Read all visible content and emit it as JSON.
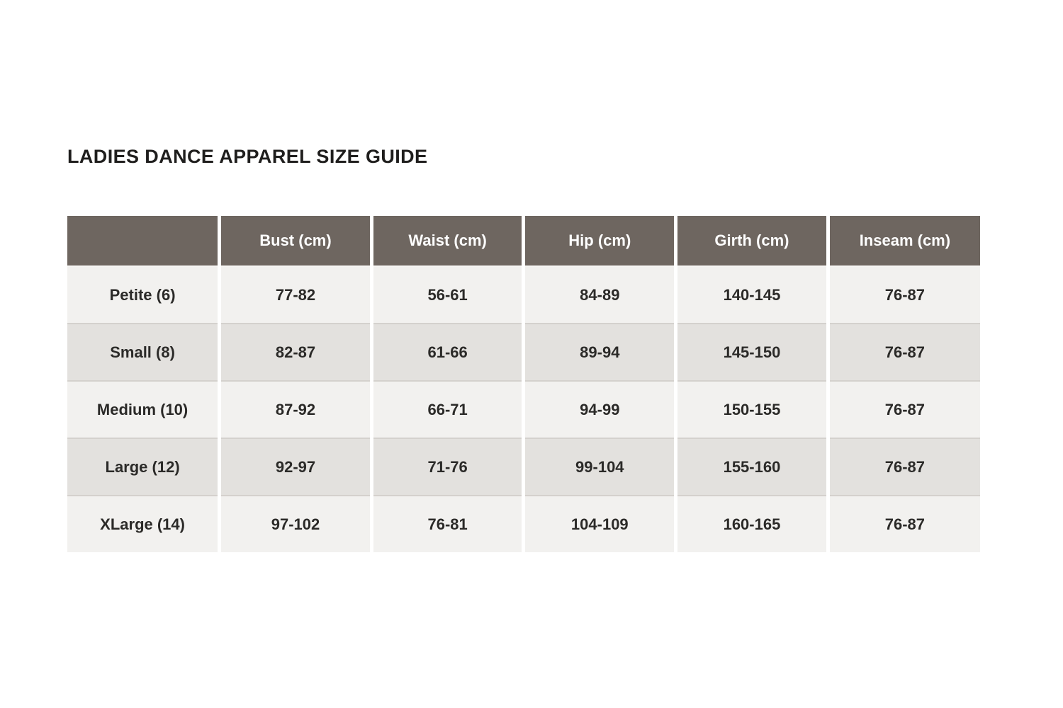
{
  "page": {
    "title": "LADIES DANCE APPAREL SIZE GUIDE"
  },
  "table": {
    "columns": [
      "",
      "Bust (cm)",
      "Waist (cm)",
      "Hip (cm)",
      "Girth (cm)",
      "Inseam (cm)"
    ],
    "rows": [
      {
        "label": "Petite (6)",
        "values": [
          "77-82",
          "56-61",
          "84-89",
          "140-145",
          "76-87"
        ]
      },
      {
        "label": "Small (8)",
        "values": [
          "82-87",
          "61-66",
          "89-94",
          "145-150",
          "76-87"
        ]
      },
      {
        "label": "Medium (10)",
        "values": [
          "87-92",
          "66-71",
          "94-99",
          "150-155",
          "76-87"
        ]
      },
      {
        "label": "Large (12)",
        "values": [
          "92-97",
          "71-76",
          "99-104",
          "155-160",
          "76-87"
        ]
      },
      {
        "label": "XLarge (14)",
        "values": [
          "97-102",
          "76-81",
          "104-109",
          "160-165",
          "76-87"
        ]
      }
    ],
    "colors": {
      "header_bg": "#6e6660",
      "header_text": "#ffffff",
      "row_odd_bg": "#f2f1ef",
      "row_even_bg": "#e3e1de",
      "row_separator": "#d4d1cd",
      "cell_text": "#2b2a28"
    }
  }
}
